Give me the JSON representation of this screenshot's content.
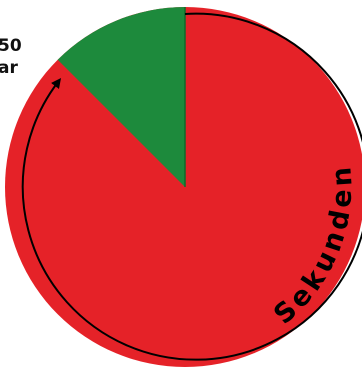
{
  "labels": {
    "top": "50",
    "bottom": "ar"
  },
  "arc_label": "Sekunden",
  "colors": {
    "red": "#e52228",
    "green": "#1d8a3c",
    "arrow": "#000000",
    "text": "#000000"
  },
  "sector": {
    "green_fraction": 0.125
  }
}
